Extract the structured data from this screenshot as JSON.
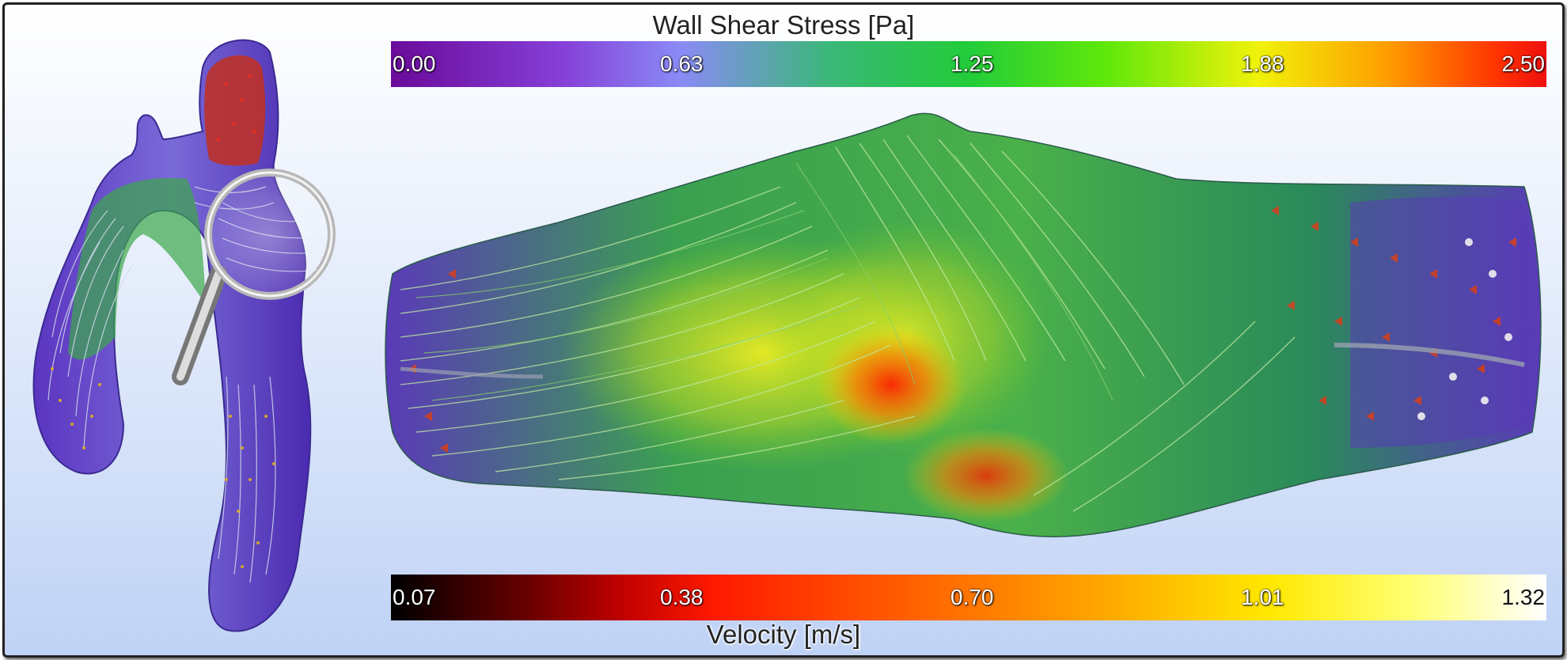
{
  "wall_shear_stress": {
    "title": "Wall Shear Stress [Pa]",
    "ticks": [
      "0.00",
      "0.63",
      "1.25",
      "1.88",
      "2.50"
    ],
    "colors": [
      "#6a0a9a",
      "#8a8af6",
      "#22cc3a",
      "#f0f20a",
      "#ee1010"
    ]
  },
  "velocity": {
    "title": "Velocity [m/s]",
    "ticks": [
      "0.07",
      "0.38",
      "0.70",
      "1.01",
      "1.32"
    ],
    "colors": [
      "#000000",
      "#c00000",
      "#ff6000",
      "#ffe800",
      "#ffffff"
    ]
  },
  "icons": {
    "magnifier": "magnifying-glass-icon"
  }
}
